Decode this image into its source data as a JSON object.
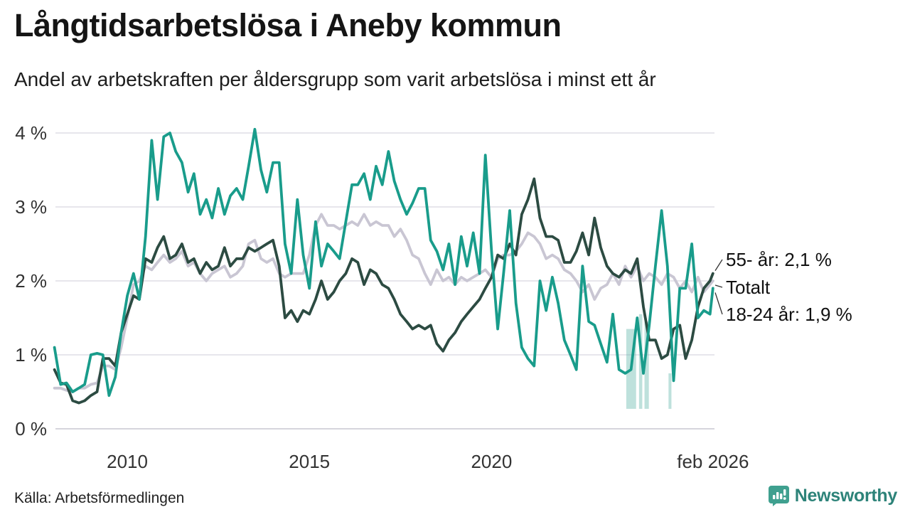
{
  "chart_data": {
    "type": "line",
    "title": "Långtidsarbetslösa i Aneby kommun",
    "subtitle": "Andel av arbetskraften per åldersgrupp som varit arbetslösa i minst ett år",
    "source": "Källa: Arbetsförmedlingen",
    "legend_position": "right-end-annotations",
    "grid": true,
    "x_axis": {
      "range": [
        2008,
        2026.17
      ],
      "ticks": [
        {
          "label": "2010",
          "value": 2010
        },
        {
          "label": "2015",
          "value": 2015
        },
        {
          "label": "2020",
          "value": 2020
        },
        {
          "label": "feb 2026",
          "value": 2026.08
        }
      ]
    },
    "y_axis": {
      "range": [
        0,
        4
      ],
      "ticks": [
        {
          "label": "0 %",
          "value": 0
        },
        {
          "label": "1 %",
          "value": 1
        },
        {
          "label": "2 %",
          "value": 2
        },
        {
          "label": "3 %",
          "value": 3
        },
        {
          "label": "4 %",
          "value": 4
        }
      ]
    },
    "x": [
      2008.0,
      2008.17,
      2008.33,
      2008.5,
      2008.67,
      2008.83,
      2009.0,
      2009.17,
      2009.33,
      2009.5,
      2009.67,
      2009.83,
      2010.0,
      2010.17,
      2010.33,
      2010.5,
      2010.67,
      2010.83,
      2011.0,
      2011.17,
      2011.33,
      2011.5,
      2011.67,
      2011.83,
      2012.0,
      2012.17,
      2012.33,
      2012.5,
      2012.67,
      2012.83,
      2013.0,
      2013.17,
      2013.33,
      2013.5,
      2013.67,
      2013.83,
      2014.0,
      2014.17,
      2014.33,
      2014.5,
      2014.67,
      2014.83,
      2015.0,
      2015.17,
      2015.33,
      2015.5,
      2015.67,
      2015.83,
      2016.0,
      2016.17,
      2016.33,
      2016.5,
      2016.67,
      2016.83,
      2017.0,
      2017.17,
      2017.33,
      2017.5,
      2017.67,
      2017.83,
      2018.0,
      2018.17,
      2018.33,
      2018.5,
      2018.67,
      2018.83,
      2019.0,
      2019.17,
      2019.33,
      2019.5,
      2019.67,
      2019.83,
      2020.0,
      2020.17,
      2020.33,
      2020.5,
      2020.67,
      2020.83,
      2021.0,
      2021.17,
      2021.33,
      2021.5,
      2021.67,
      2021.83,
      2022.0,
      2022.17,
      2022.33,
      2022.5,
      2022.67,
      2022.83,
      2023.0,
      2023.17,
      2023.33,
      2023.5,
      2023.67,
      2023.83,
      2024.0,
      2024.17,
      2024.33,
      2024.5,
      2024.67,
      2024.83,
      2025.0,
      2025.17,
      2025.33,
      2025.5,
      2025.67,
      2025.83,
      2026.0,
      2026.08
    ],
    "series": [
      {
        "name": "Totalt",
        "slug": "totalt",
        "color": "#c9c6d3",
        "end_value": 2.0,
        "values": [
          0.55,
          0.55,
          0.52,
          0.5,
          0.55,
          0.55,
          0.6,
          0.62,
          0.85,
          0.85,
          0.8,
          1.1,
          1.5,
          1.95,
          2.0,
          2.2,
          2.15,
          2.25,
          2.35,
          2.25,
          2.3,
          2.4,
          2.2,
          2.25,
          2.1,
          2.0,
          2.1,
          2.15,
          2.2,
          2.05,
          2.1,
          2.2,
          2.5,
          2.55,
          2.3,
          2.25,
          2.3,
          2.1,
          2.05,
          2.1,
          2.1,
          2.1,
          2.35,
          2.75,
          2.9,
          2.75,
          2.75,
          2.7,
          2.75,
          2.8,
          2.75,
          2.9,
          2.75,
          2.8,
          2.75,
          2.75,
          2.6,
          2.7,
          2.55,
          2.35,
          2.3,
          2.1,
          1.95,
          2.15,
          2.0,
          2.05,
          1.95,
          2.05,
          2.0,
          2.05,
          2.1,
          2.15,
          2.05,
          2.3,
          2.35,
          2.35,
          2.4,
          2.5,
          2.65,
          2.6,
          2.5,
          2.3,
          2.35,
          2.3,
          2.15,
          2.1,
          2.0,
          1.85,
          1.95,
          1.75,
          1.9,
          1.95,
          2.1,
          1.95,
          2.2,
          2.05,
          2.2,
          2.0,
          2.1,
          2.05,
          1.95,
          2.1,
          2.05,
          1.9,
          2.0,
          1.85,
          2.05,
          1.85,
          1.95,
          2.0
        ]
      },
      {
        "name": "55- år",
        "slug": "55-ar",
        "color": "#2c4b42",
        "end_value": 2.1,
        "values": [
          0.8,
          0.62,
          0.6,
          0.38,
          0.35,
          0.38,
          0.45,
          0.5,
          0.95,
          0.95,
          0.85,
          1.3,
          1.55,
          1.8,
          1.75,
          2.3,
          2.25,
          2.45,
          2.6,
          2.3,
          2.35,
          2.5,
          2.25,
          2.3,
          2.1,
          2.25,
          2.15,
          2.2,
          2.45,
          2.2,
          2.3,
          2.3,
          2.45,
          2.4,
          2.45,
          2.5,
          2.55,
          2.2,
          1.5,
          1.6,
          1.45,
          1.6,
          1.55,
          1.75,
          2.0,
          1.75,
          1.85,
          2.0,
          2.1,
          2.3,
          2.25,
          1.95,
          2.15,
          2.1,
          1.95,
          1.9,
          1.75,
          1.55,
          1.45,
          1.35,
          1.4,
          1.35,
          1.4,
          1.15,
          1.05,
          1.2,
          1.3,
          1.45,
          1.55,
          1.65,
          1.75,
          1.9,
          2.05,
          2.35,
          2.3,
          2.5,
          2.35,
          2.9,
          3.1,
          3.38,
          2.85,
          2.6,
          2.6,
          2.55,
          2.25,
          2.25,
          2.4,
          2.65,
          2.35,
          2.85,
          2.45,
          2.2,
          2.1,
          2.05,
          2.15,
          2.1,
          2.3,
          1.65,
          1.2,
          1.2,
          0.95,
          1.0,
          1.35,
          1.4,
          0.95,
          1.2,
          1.65,
          1.9,
          2.0,
          2.1
        ]
      },
      {
        "name": "18-24 år",
        "slug": "18-24-ar",
        "color": "#199c8b",
        "end_value": 1.9,
        "values": [
          1.1,
          0.6,
          0.62,
          0.5,
          0.55,
          0.6,
          1.0,
          1.02,
          1.0,
          0.45,
          0.7,
          1.3,
          1.8,
          2.1,
          1.75,
          2.6,
          3.9,
          3.1,
          3.95,
          4.0,
          3.75,
          3.6,
          3.2,
          3.45,
          2.9,
          3.1,
          2.85,
          3.25,
          2.9,
          3.15,
          3.25,
          3.1,
          3.55,
          4.05,
          3.5,
          3.2,
          3.6,
          3.6,
          2.5,
          2.1,
          3.1,
          2.35,
          1.9,
          2.8,
          2.2,
          2.5,
          2.4,
          2.3,
          2.8,
          3.3,
          3.3,
          3.45,
          3.1,
          3.55,
          3.3,
          3.75,
          3.35,
          3.1,
          2.9,
          3.05,
          3.25,
          3.25,
          2.55,
          2.4,
          2.15,
          2.5,
          1.95,
          2.6,
          2.2,
          2.65,
          2.1,
          3.7,
          2.4,
          1.35,
          2.1,
          2.95,
          1.7,
          1.1,
          0.95,
          0.85,
          2.0,
          1.6,
          2.05,
          1.7,
          1.2,
          1.0,
          0.8,
          2.2,
          1.45,
          1.4,
          1.15,
          0.9,
          1.55,
          0.8,
          0.75,
          0.8,
          1.5,
          0.75,
          1.4,
          2.2,
          2.95,
          2.2,
          0.65,
          1.9,
          1.9,
          2.5,
          1.5,
          1.6,
          1.55,
          1.9
        ]
      }
    ],
    "annotations": [
      {
        "label": "55- år: 2,1 %",
        "series": "55- år",
        "end_value": 2.1
      },
      {
        "label": "Totalt",
        "series": "Totalt",
        "end_value": 2.0
      },
      {
        "label": "18-24 år: 1,9 %",
        "series": "18-24 år",
        "end_value": 1.9
      }
    ],
    "uncertainty_bands": [
      {
        "x0": 2023.7,
        "x1": 2023.97,
        "top": 1.35,
        "bottom": 0.27
      },
      {
        "x0": 2024.05,
        "x1": 2024.14,
        "top": 1.55,
        "bottom": 0.27
      },
      {
        "x0": 2024.2,
        "x1": 2024.32,
        "top": 1.45,
        "bottom": 0.27
      },
      {
        "x0": 2024.86,
        "x1": 2024.94,
        "top": 0.75,
        "bottom": 0.27
      }
    ],
    "colors": {
      "grid": "#e7e6ec",
      "baseline": "#d6d5dc",
      "band_fill": "#63b7ab",
      "leader_line": "#333333"
    }
  },
  "footer": {
    "brand": "Newsworthy",
    "brand_icon": "bar-chart-speech-bubble",
    "brand_color": "#2d8379",
    "icon_color": "#3fa08f"
  }
}
